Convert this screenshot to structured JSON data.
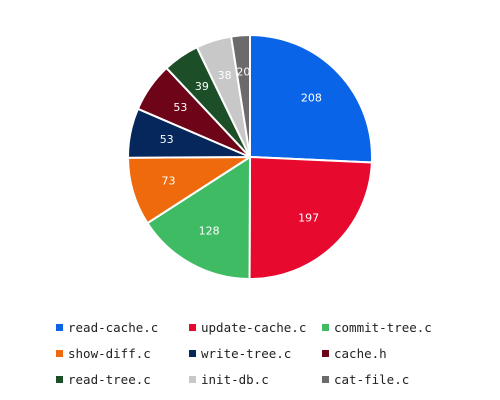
{
  "chart_data": {
    "type": "pie",
    "categories": [
      "read-cache.c",
      "update-cache.c",
      "commit-tree.c",
      "show-diff.c",
      "write-tree.c",
      "cache.h",
      "read-tree.c",
      "init-db.c",
      "cat-file.c"
    ],
    "values": [
      208,
      197,
      128,
      73,
      53,
      53,
      39,
      38,
      20
    ],
    "colors": [
      "#0a64e8",
      "#e8092f",
      "#3fbb63",
      "#ee6a0c",
      "#06275b",
      "#6d0418",
      "#1c4e28",
      "#c8c8c8",
      "#6b6b6b"
    ],
    "start_angle": "12 o'clock",
    "direction": "clockwise",
    "data_labels": true,
    "legend_position": "bottom"
  }
}
